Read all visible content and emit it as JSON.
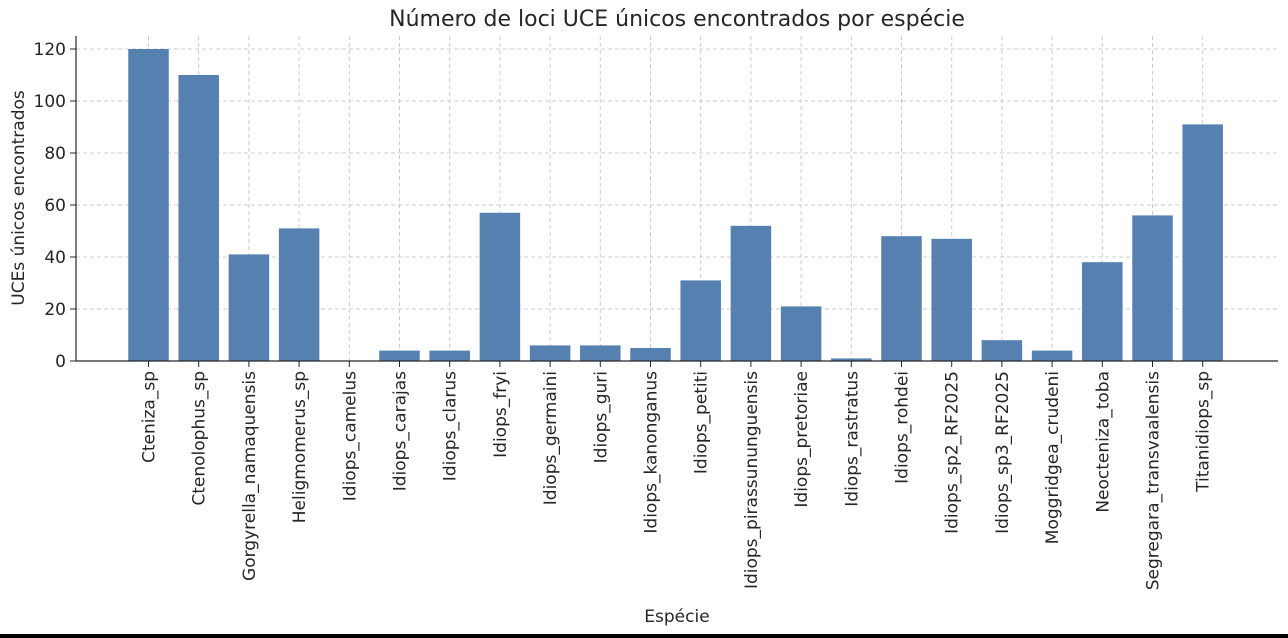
{
  "chart_data": {
    "type": "bar",
    "title": "Número de loci UCE únicos encontrados por espécie",
    "xlabel": "Espécie",
    "ylabel": "UCEs únicos encontrados",
    "ylim": [
      0,
      125
    ],
    "yticks": [
      0,
      20,
      40,
      60,
      80,
      100,
      120
    ],
    "grid": true,
    "bar_color": "#5580b0",
    "categories": [
      "Cteniza_sp",
      "Ctenolophus_sp",
      "Gorgyrella_namaquensis",
      "Heligmomerus_sp",
      "Idiops_camelus",
      "Idiops_carajas",
      "Idiops_clarus",
      "Idiops_fryi",
      "Idiops_germaini",
      "Idiops_guri",
      "Idiops_kanonganus",
      "Idiops_petiti",
      "Idiops_pirassununguensis",
      "Idiops_pretoriae",
      "Idiops_rastratus",
      "Idiops_rohdei",
      "Idiops_sp2_RF2025",
      "Idiops_sp3_RF2025",
      "Moggridgea_crudeni",
      "Neocteniza_toba",
      "Segregara_transvaalensis",
      "Titanidiops_sp"
    ],
    "values": [
      120,
      110,
      41,
      51,
      0,
      4,
      4,
      57,
      6,
      6,
      5,
      31,
      52,
      21,
      1,
      48,
      47,
      8,
      4,
      38,
      56,
      91
    ]
  }
}
